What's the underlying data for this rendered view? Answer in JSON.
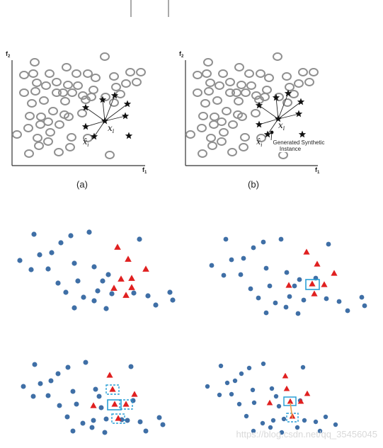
{
  "figure_top": {
    "panel_a": {
      "y_axis_label": "f",
      "y_axis_sub": "2",
      "x_axis_label": "f",
      "x_axis_sub": "1",
      "xi_label": "x",
      "xi_sub": "i",
      "xhat_label": "x̂",
      "xhat_sub": "i",
      "caption": "(a)"
    },
    "panel_b": {
      "y_axis_label": "f",
      "y_axis_sub": "2",
      "x_axis_label": "f",
      "x_axis_sub": "1",
      "xi_label": "x",
      "xi_sub": "i",
      "xhat_label": "x̂",
      "xhat_sub": "i",
      "annotation_line1": "Generated Synthetic",
      "annotation_line2": "Instance",
      "caption": "(b)"
    }
  },
  "colors": {
    "majority": "#3f6fa6",
    "minority": "#e02020",
    "highlight": "#2a9fd6",
    "synthetic_link": "#e8a04c",
    "majority_outline": "#909090"
  },
  "watermark": "https://blog.csdn.net/qq_35456045"
}
